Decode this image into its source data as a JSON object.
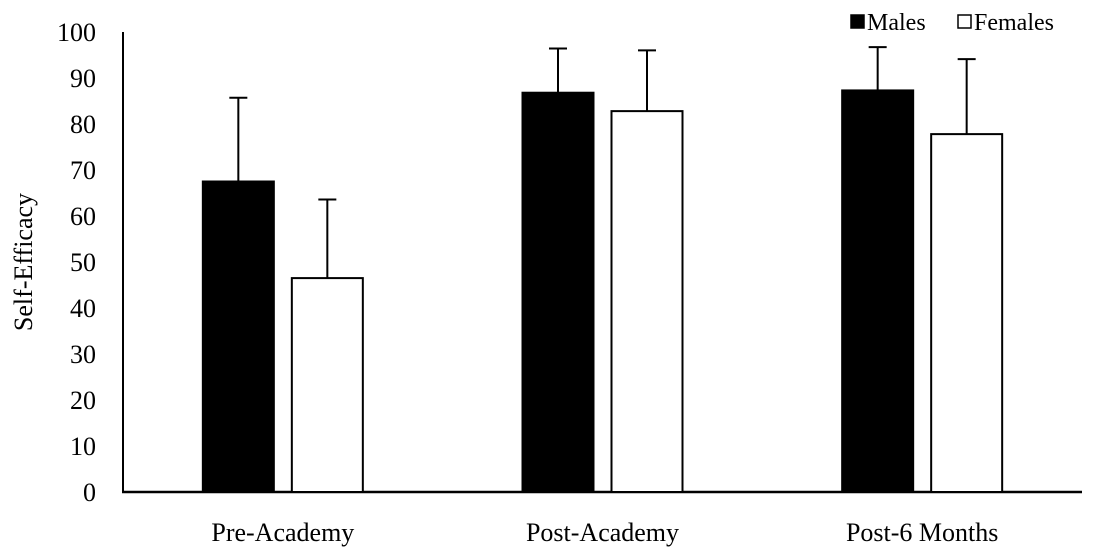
{
  "chart_data": {
    "type": "bar",
    "title": "",
    "xlabel": "",
    "ylabel": "Self-Efficacy",
    "ylim": [
      0,
      100
    ],
    "yticks": [
      0,
      10,
      20,
      30,
      40,
      50,
      60,
      70,
      80,
      90,
      100
    ],
    "categories": [
      "Pre-Academy",
      "Post-Academy",
      "Post-6 Months"
    ],
    "series": [
      {
        "name": "Males",
        "color": "#000000",
        "values": [
          67.5,
          86.8,
          87.3
        ],
        "error": [
          18.2,
          9.6,
          9.4
        ]
      },
      {
        "name": "Females",
        "color": "#ffffff",
        "values": [
          46.5,
          82.8,
          77.8
        ],
        "error": [
          17.1,
          13.2,
          16.3
        ]
      }
    ],
    "grid": false,
    "legend_position": "top-right"
  }
}
